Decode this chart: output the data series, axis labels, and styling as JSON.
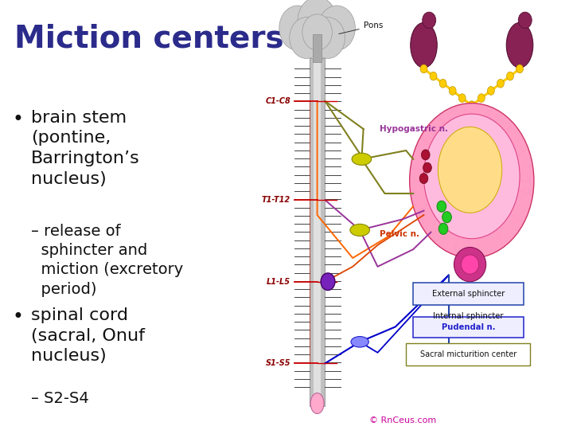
{
  "title": "Miction centers",
  "title_color": "#2B2B8B",
  "title_fontsize": 28,
  "background_color": "#FFFFFF",
  "bullet1": "brain stem\n(pontine,\nBarrington’s\nnucleus)",
  "bullet1_sub": "– release of\n  sphincter and\n  miction (excretory\n  period)",
  "bullet2": "spinal cord\n(sacral, Onuf\nnucleus)",
  "bullet2_sub": "– S2-S4",
  "text_color": "#111111",
  "spine_color": "#B8B8B8",
  "spine_edge": "#888888",
  "tick_color": "#333333",
  "level_line_color": "#CC0000",
  "level_label_color": "#8B0000",
  "brain_fill": "#CCCCCC",
  "brain_edge": "#999999",
  "bladder_outer_fill": "#FF9EC4",
  "bladder_outer_edge": "#CC3366",
  "bladder_inner_fill": "#FFDD88",
  "bladder_inner_edge": "#CCAA00",
  "kidney_fill": "#882255",
  "kidney_edge": "#551133",
  "ureter_color": "#FFCC00",
  "nerve_hypo_color": "#808020",
  "nerve_pelvic_color": "#CC4400",
  "nerve_pudendal_color": "#0000CC",
  "nerve_purple_color": "#993399",
  "nerve_red_color": "#CC2200",
  "nerve_orange_color": "#FF6600",
  "ganglion_fill": "#CCCC00",
  "ganglion_edge": "#888800",
  "purple_node_fill": "#7722BB",
  "pink_node_fill": "#FFAACC",
  "green_dot_fill": "#22CC22",
  "sphincter_fill": "#993377",
  "label_hypo_color": "#993399",
  "label_pelvic_color": "#CC3300",
  "label_pudendal_color": "#2222CC",
  "label_external_color": "#111111",
  "label_sacral_color": "#111111",
  "copyright_color": "#CC0099",
  "pons_label_color": "#111111",
  "box_external_edge": "#2244AA",
  "box_pudendal_fill": "#EEEEFF",
  "sacral_box_edge": "#808020"
}
